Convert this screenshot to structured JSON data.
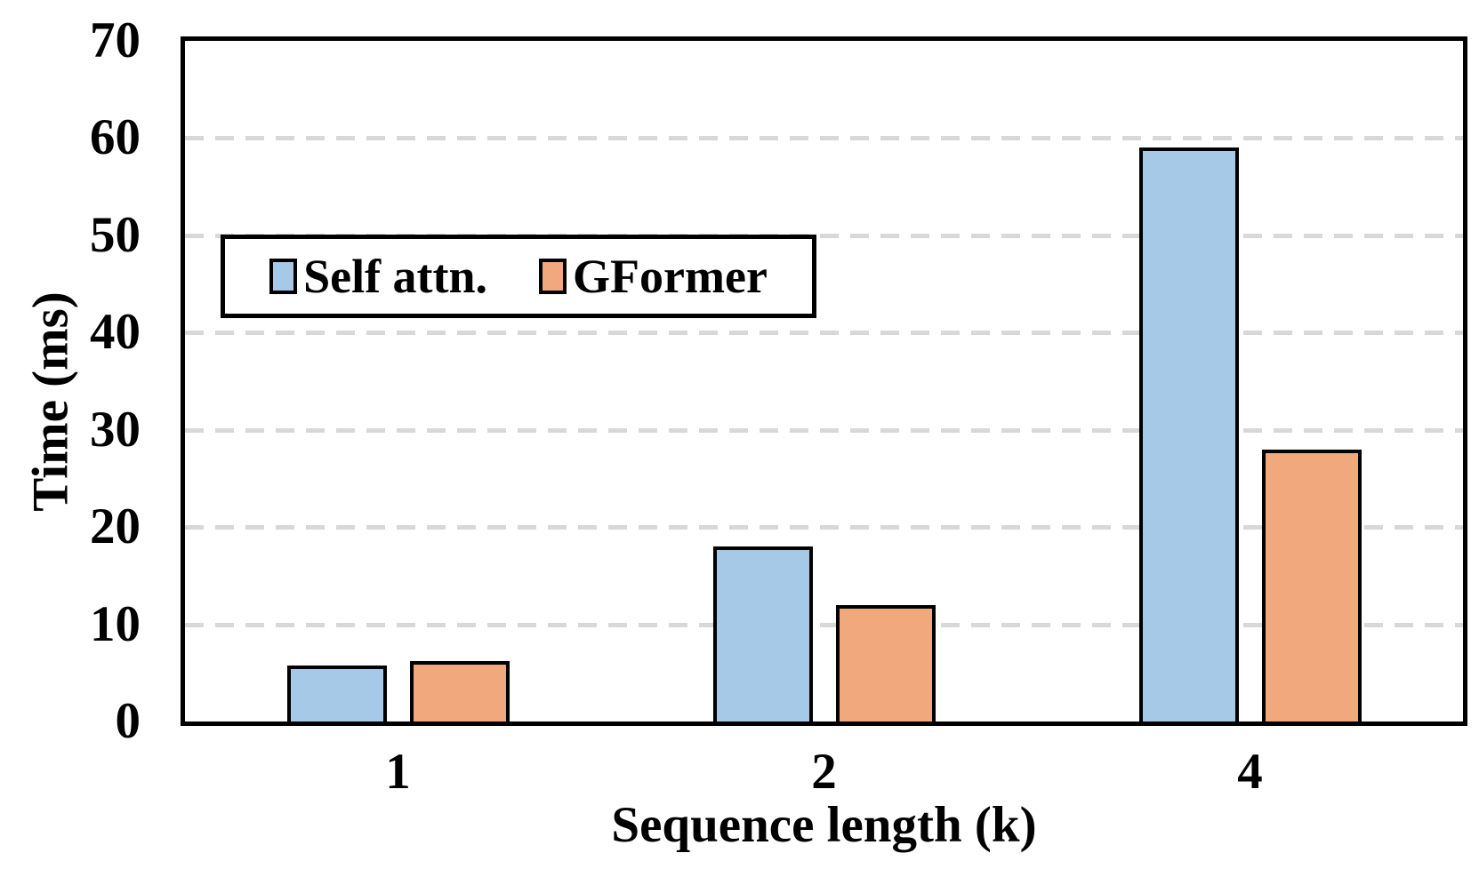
{
  "chart_data": {
    "type": "bar",
    "title": "",
    "xlabel": "Sequence length (k)",
    "ylabel": "Time (ms)",
    "categories": [
      "1",
      "2",
      "4"
    ],
    "series": [
      {
        "name": "Self attn.",
        "color": "#A6C9E8",
        "values": [
          5.8,
          18,
          59
        ]
      },
      {
        "name": "GFormer",
        "color": "#F1A87C",
        "values": [
          6.2,
          12,
          28
        ]
      }
    ],
    "ylim": [
      0,
      70
    ],
    "yticks": [
      0,
      10,
      20,
      30,
      40,
      50,
      60,
      70
    ],
    "grid": "horizontal-dashed",
    "legend_position": "upper-left-inside",
    "colors": {
      "bar_border": "#000000",
      "plot_border": "#000000",
      "gridline": "#D8D8D8",
      "background": "#FFFFFF",
      "text": "#000000"
    }
  }
}
